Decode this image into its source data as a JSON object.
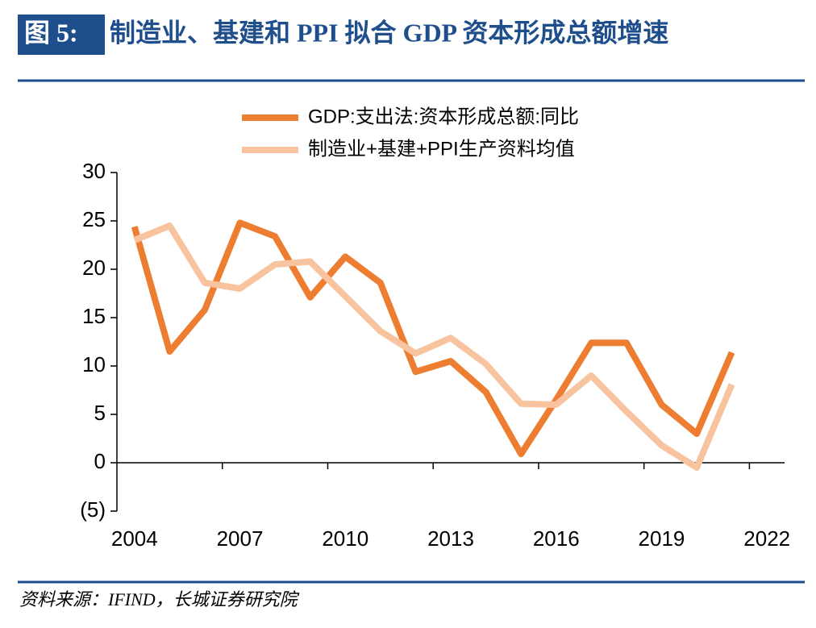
{
  "figure_label": "图 5:",
  "source": "资料来源：IFIND，长城证券研究院",
  "chart_data": {
    "type": "line",
    "title": "制造业、基建和 PPI 拟合 GDP 资本形成总额增速",
    "categories": [
      "2004",
      null,
      null,
      "2007",
      null,
      null,
      "2010",
      null,
      null,
      "2013",
      null,
      null,
      "2016",
      null,
      null,
      "2019",
      null,
      null,
      "2022"
    ],
    "series": [
      {
        "name": "GDP:支出法:资本形成总额:同比",
        "color": "#ed7d31",
        "values": [
          24.4,
          11.5,
          15.8,
          24.8,
          23.4,
          17.1,
          21.3,
          18.6,
          9.4,
          10.5,
          7.3,
          0.9,
          6.5,
          12.4,
          12.4,
          6.0,
          3.0,
          11.4,
          null
        ]
      },
      {
        "name": "制造业+基建+PPI生产资料均值",
        "color": "#f8c39f",
        "values": [
          23.0,
          24.5,
          18.6,
          18.0,
          20.5,
          20.8,
          17.2,
          13.6,
          11.3,
          12.9,
          10.2,
          6.1,
          6.0,
          9.0,
          5.3,
          1.8,
          -0.5,
          8.1,
          null
        ]
      }
    ],
    "ylim": [
      -5,
      30
    ],
    "yticks": [
      {
        "value": -5,
        "label": "(5)"
      },
      0,
      5,
      10,
      15,
      20,
      25,
      30
    ],
    "negative_tick_color": "#c00000",
    "grid": false,
    "legend": "top"
  }
}
